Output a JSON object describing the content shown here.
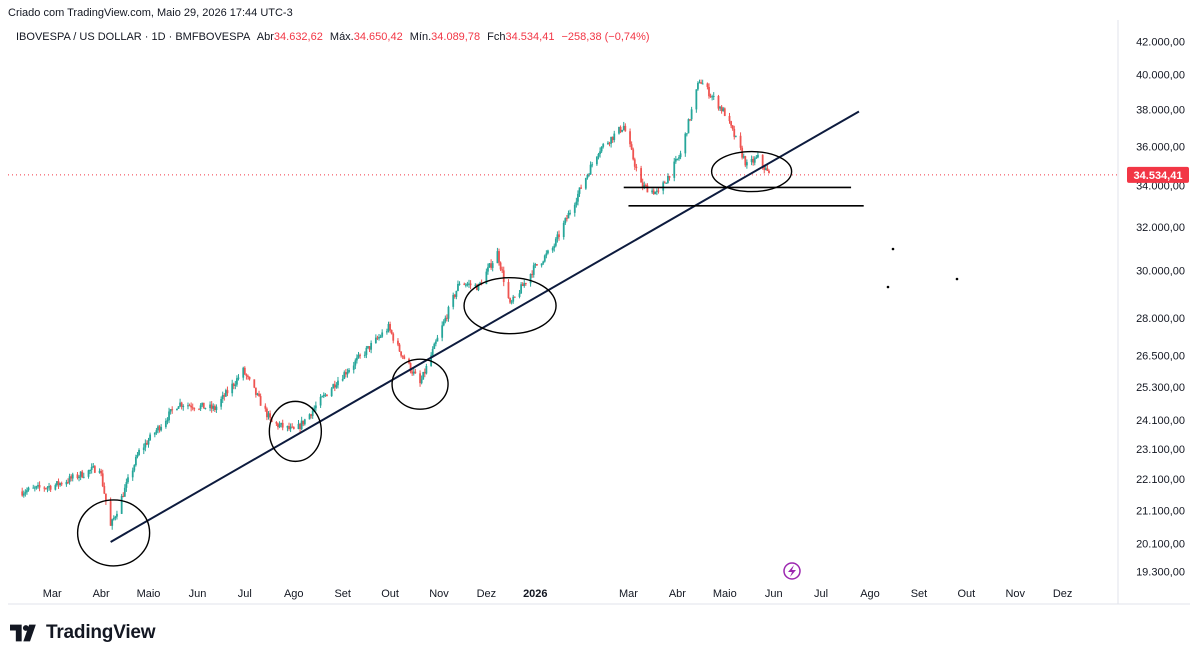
{
  "header": {
    "credit": "Criado com TradingView.com, Maio 29, 2026 17:44 UTC-3"
  },
  "legend": {
    "symbol": "IBOVESPA / US DOLLAR · 1D · BMFBOVESPA",
    "open_label": "Abr",
    "open_value": "34.632,62",
    "high_label": "Máx.",
    "high_value": "34.650,42",
    "low_label": "Mín.",
    "low_value": "34.089,78",
    "close_label": "Fch",
    "close_value": "34.534,41",
    "change": "−258,38 (−0,74%)"
  },
  "price_axis": {
    "ticks": [
      "42.000,00",
      "40.000,00",
      "38.000,00",
      "36.000,00",
      "34.000,00",
      "32.000,00",
      "30.000,00",
      "28.000,00",
      "26.500,00",
      "25.300,00",
      "24.100,00",
      "23.100,00",
      "22.100,00",
      "21.100,00",
      "20.100,00",
      "19.300,00"
    ],
    "last_price": "34.534,41"
  },
  "time_axis": {
    "labels": [
      "Mar",
      "Abr",
      "Maio",
      "Jun",
      "Jul",
      "Ago",
      "Set",
      "Out",
      "Nov",
      "Dez",
      "2026",
      "Mar",
      "Abr",
      "Maio",
      "Jun",
      "Jul",
      "Ago",
      "Set",
      "Out",
      "Nov",
      "Dez"
    ]
  },
  "colors": {
    "up": "#26a69a",
    "down": "#ef5350",
    "last_price_line": "#f23645",
    "trendline": "#0d1b3e",
    "annotation": "#000000",
    "earnings_badge": "#9c27b0"
  },
  "icons": {
    "earnings": "lightning-bolt-icon",
    "brand": "tradingview-logo-icon"
  },
  "brand": {
    "name": "TradingView"
  },
  "chart_data": {
    "type": "candlestick",
    "scale": "log",
    "x_range": [
      "2025-02",
      "2026-12"
    ],
    "ylim": [
      19000,
      42900
    ],
    "last_price": 34534.41,
    "series": [
      {
        "x": [
          "2025-02-10",
          "2025-03-03",
          "2025-03-31",
          "2025-04-07",
          "2025-04-25",
          "2025-05-20",
          "2025-06-12",
          "2025-06-30",
          "2025-07-18",
          "2025-08-02",
          "2025-08-28",
          "2025-09-30",
          "2025-10-06",
          "2025-10-20",
          "2025-11-14",
          "2025-11-26",
          "2025-12-08",
          "2025-12-16",
          "2025-12-31",
          "2026-01-12",
          "2026-02-10",
          "2026-02-26",
          "2026-03-09",
          "2026-03-20",
          "2026-04-03",
          "2026-04-15",
          "2026-05-01",
          "2026-05-15",
          "2026-05-22",
          "2026-05-29"
        ],
        "y": [
          21700,
          21900,
          22500,
          20600,
          23000,
          24700,
          24500,
          25900,
          24000,
          23700,
          25500,
          27600,
          26800,
          25400,
          29500,
          29300,
          30800,
          28500,
          30100,
          31000,
          35800,
          37100,
          34000,
          33600,
          35600,
          39700,
          37800,
          35000,
          35400,
          34534
        ]
      }
    ],
    "annotations": {
      "trendline": [
        [
          "2025-04-07",
          20150
        ],
        [
          "2026-07-25",
          37900
        ]
      ],
      "support_lines": [
        {
          "from": "2026-02-26",
          "to": "2026-07-20",
          "y": 33900
        },
        {
          "from": "2026-03-01",
          "to": "2026-07-28",
          "y": 33000
        }
      ],
      "circled_touches": [
        "2025-04-07",
        "2025-08-02",
        "2025-10-20",
        "2025-12-16",
        "2026-05-18"
      ]
    }
  }
}
